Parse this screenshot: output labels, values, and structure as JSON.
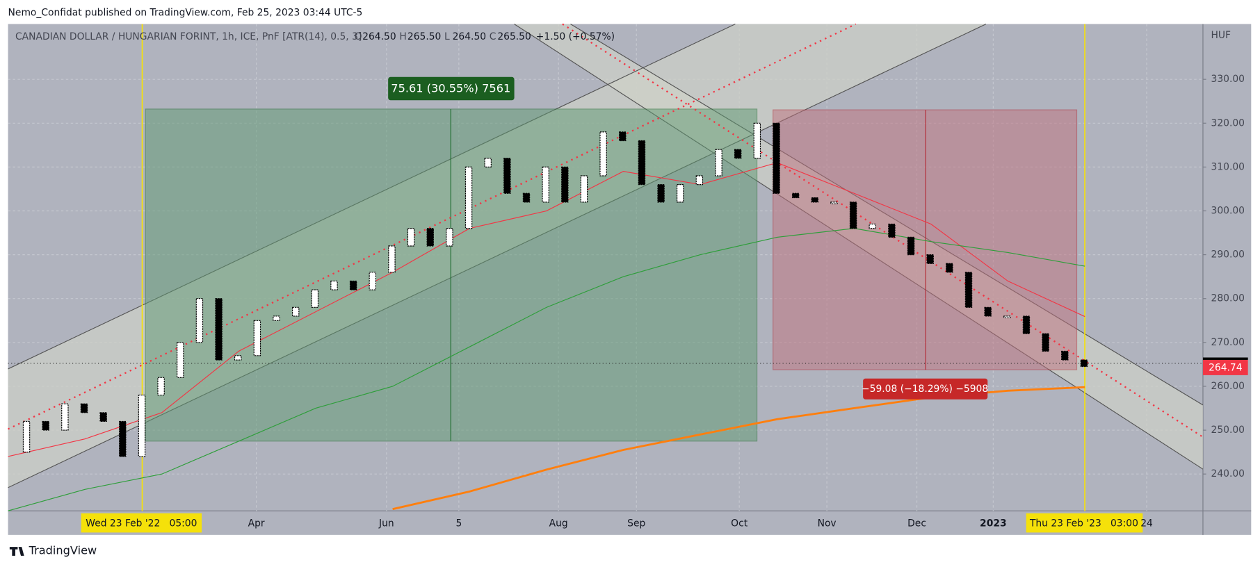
{
  "header": {
    "published": "Nemo_Confidat published on TradingView.com, Feb 25, 2023 03:44 UTC-5",
    "brand": "TradingView"
  },
  "chart_data": {
    "type": "pnf",
    "title": "CANADIAN DOLLAR / HUNGARIAN FORINT, 1h, ICE, PnF [ATR(14), 0.5, 3]",
    "ohlc": [
      {
        "label": "O",
        "value": "264.50"
      },
      {
        "label": "H",
        "value": "265.50"
      },
      {
        "label": "L",
        "value": "264.50"
      },
      {
        "label": "C",
        "value": "265.50"
      }
    ],
    "change": "+1.50 (+0.57%)",
    "y_axis_label": "HUF",
    "ylim": [
      231.6,
      342.6
    ],
    "yticks": [
      {
        "value": 240,
        "label": "240.00"
      },
      {
        "value": 250,
        "label": "250.00"
      },
      {
        "value": 260,
        "label": "260.00"
      },
      {
        "value": 270,
        "label": "270.00"
      },
      {
        "value": 280,
        "label": "280.00"
      },
      {
        "value": 290,
        "label": "290.00"
      },
      {
        "value": 300,
        "label": "300.00"
      },
      {
        "value": 310,
        "label": "310.00"
      },
      {
        "value": 320,
        "label": "320.00"
      },
      {
        "value": 330,
        "label": "330.00"
      }
    ],
    "xticks": [
      "Apr",
      "Jun",
      "5",
      "Aug",
      "Sep",
      "Oct",
      "Nov",
      "Dec",
      "2023",
      "24"
    ],
    "grid": true,
    "price": {
      "color": "#000000",
      "values": [
        245,
        252,
        250,
        256,
        254,
        252,
        244,
        258,
        262,
        270,
        280,
        266,
        267,
        275,
        276,
        278,
        282,
        284,
        282,
        286,
        292,
        296,
        292,
        296,
        310,
        312,
        304,
        302,
        310,
        302,
        308,
        318,
        316,
        306,
        302,
        306,
        308,
        314,
        312,
        320,
        304,
        303,
        302,
        302,
        296,
        297,
        294,
        290,
        288,
        286,
        278,
        276,
        276,
        272,
        268,
        266,
        264.5
      ]
    },
    "series": [
      {
        "color": "#f23645",
        "values": [
          244,
          248,
          254,
          268,
          277,
          286,
          296,
          300,
          309,
          306,
          311,
          304,
          297,
          284,
          275.9
        ]
      },
      {
        "color": "#2e9e3a",
        "values": [
          231.6,
          236.5,
          240,
          247.5,
          255,
          260,
          269,
          278,
          285,
          290,
          294,
          296,
          293,
          290.5,
          287.4
        ]
      },
      {
        "color": "#ff7f0e",
        "values": [
          null,
          null,
          null,
          null,
          null,
          232,
          236,
          241,
          245.5,
          249,
          252.5,
          255,
          257.5,
          259,
          259.8
        ]
      }
    ],
    "last_price": 264.74,
    "measure_up": "75.61 (30.55%) 7561",
    "measure_down": "−59.08 (−18.29%) −5908",
    "date_start": "Wed 23 Feb '22   05:00",
    "date_end": "Thu 23 Feb '23   03:00"
  }
}
